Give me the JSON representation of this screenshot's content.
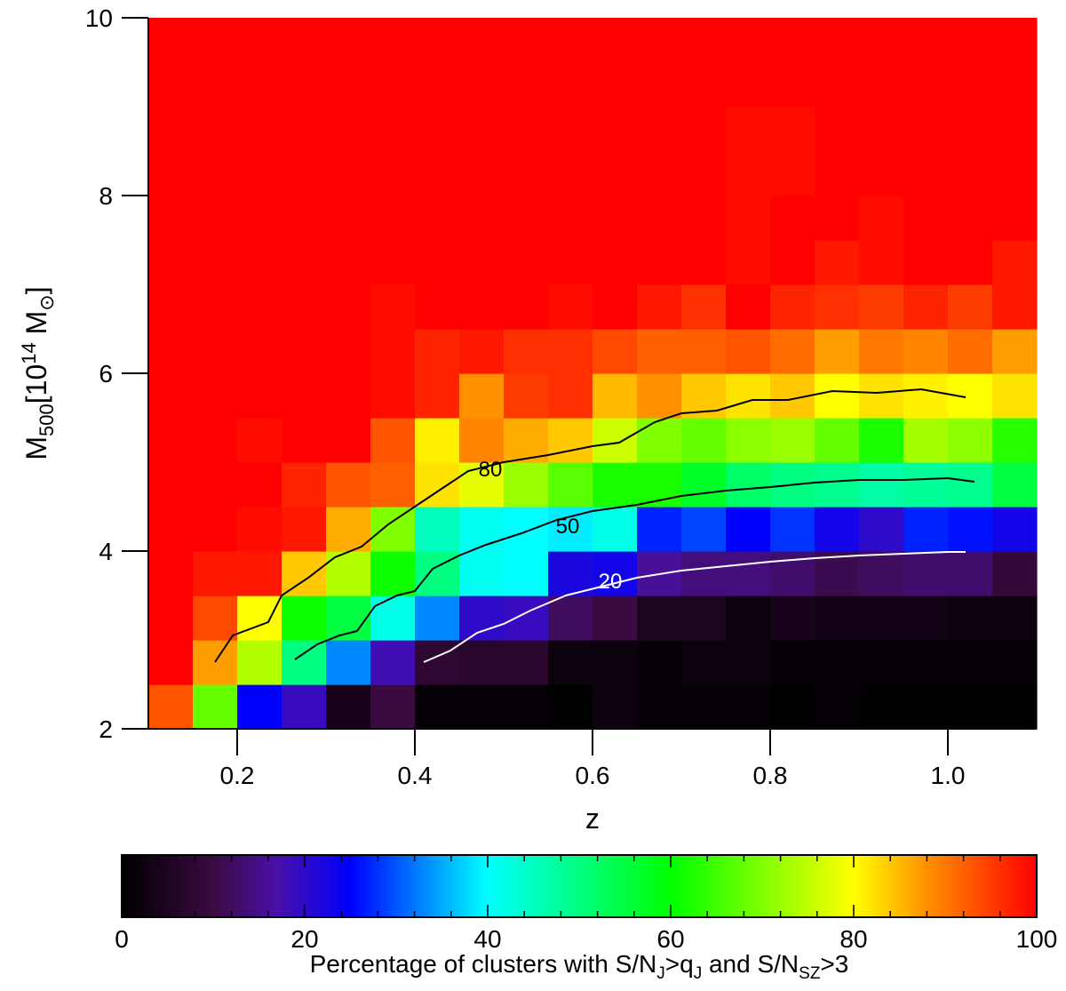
{
  "chart_data": {
    "type": "heatmap",
    "xlabel": "z",
    "ylabel": "M",
    "ylabel_sub": "500",
    "ylabel_units_pre": "[10",
    "ylabel_units_sup": "14",
    "ylabel_units_post": " M",
    "ylabel_units_sub": "⊙",
    "ylabel_units_end": "]",
    "xlim": [
      0.1,
      1.1
    ],
    "ylim": [
      2,
      10
    ],
    "xticks": [
      0.2,
      0.4,
      0.6,
      0.8,
      1.0
    ],
    "xtick_labels": [
      "0.2",
      "0.4",
      "0.6",
      "0.8",
      "1.0"
    ],
    "yticks": [
      2,
      4,
      6,
      8,
      10
    ],
    "ytick_labels": [
      "2",
      "4",
      "6",
      "8",
      "10"
    ],
    "x_bin_edges": [
      0.1,
      0.15,
      0.2,
      0.25,
      0.3,
      0.35,
      0.4,
      0.45,
      0.5,
      0.55,
      0.6,
      0.65,
      0.7,
      0.75,
      0.8,
      0.85,
      0.9,
      0.95,
      1.0,
      1.05,
      1.1
    ],
    "y_bin_edges": [
      2,
      2.5,
      3,
      3.5,
      4,
      4.5,
      5,
      5.5,
      6,
      6.5,
      7,
      7.5,
      8,
      8.5,
      9,
      9.5,
      10
    ],
    "values": [
      [
        93,
        68,
        25,
        19,
        4,
        10,
        1,
        1,
        1,
        0,
        2,
        1,
        1,
        1,
        0,
        1,
        0,
        0,
        0,
        0
      ],
      [
        100,
        87,
        74,
        50,
        33,
        18,
        8,
        7,
        7,
        2,
        2,
        1,
        2,
        2,
        1,
        1,
        1,
        1,
        1,
        1
      ],
      [
        100,
        94,
        80,
        61,
        55,
        42,
        33,
        20,
        19,
        12,
        10,
        5,
        5,
        2,
        4,
        3,
        3,
        3,
        2,
        2
      ],
      [
        100,
        98,
        98,
        84,
        74,
        61,
        50,
        41,
        40,
        22,
        23,
        16,
        14,
        14,
        13,
        11,
        12,
        13,
        13,
        9
      ],
      [
        100,
        100,
        99,
        98,
        86,
        70,
        45,
        41,
        40,
        39,
        42,
        27,
        29,
        25,
        28,
        23,
        20,
        27,
        26,
        23
      ],
      [
        100,
        100,
        100,
        97,
        93,
        92,
        82,
        78,
        72,
        67,
        62,
        62,
        57,
        52,
        50,
        49,
        47,
        48,
        49,
        55
      ],
      [
        100,
        100,
        99,
        100,
        100,
        93,
        81,
        89,
        86,
        84,
        76,
        70,
        68,
        71,
        72,
        68,
        62,
        73,
        71,
        63
      ],
      [
        100,
        100,
        100,
        100,
        100,
        99,
        97,
        88,
        95,
        96,
        85,
        88,
        84,
        82,
        84,
        80,
        82,
        81,
        80,
        82
      ],
      [
        100,
        100,
        100,
        100,
        100,
        99,
        97,
        98,
        96,
        96,
        94,
        92,
        92,
        93,
        91,
        87,
        90,
        89,
        91,
        87
      ],
      [
        100,
        100,
        100,
        100,
        100,
        99,
        100,
        100,
        100,
        99,
        100,
        98,
        96,
        100,
        97,
        96,
        95,
        97,
        95,
        98
      ],
      [
        100,
        100,
        100,
        100,
        100,
        100,
        100,
        100,
        100,
        100,
        100,
        100,
        100,
        99,
        100,
        98,
        99,
        100,
        100,
        98
      ],
      [
        100,
        100,
        100,
        100,
        100,
        100,
        100,
        100,
        100,
        100,
        100,
        100,
        100,
        99,
        100,
        100,
        99,
        100,
        100,
        100
      ],
      [
        100,
        100,
        100,
        100,
        100,
        100,
        100,
        100,
        100,
        100,
        100,
        100,
        100,
        99,
        99,
        100,
        100,
        100,
        100,
        100
      ],
      [
        100,
        100,
        100,
        100,
        100,
        100,
        100,
        100,
        100,
        100,
        100,
        100,
        100,
        99,
        99,
        100,
        100,
        100,
        100,
        100
      ],
      [
        100,
        100,
        100,
        100,
        100,
        100,
        100,
        100,
        100,
        100,
        100,
        100,
        100,
        100,
        100,
        100,
        100,
        100,
        100,
        100
      ],
      [
        100,
        100,
        100,
        100,
        100,
        100,
        100,
        100,
        100,
        100,
        100,
        100,
        100,
        100,
        100,
        100,
        100,
        100,
        100,
        100
      ]
    ],
    "contours": [
      {
        "level": 80,
        "label": "80",
        "color": "#000000",
        "points": [
          [
            0.175,
            2.75
          ],
          [
            0.195,
            3.05
          ],
          [
            0.235,
            3.2
          ],
          [
            0.25,
            3.5
          ],
          [
            0.28,
            3.7
          ],
          [
            0.31,
            3.93
          ],
          [
            0.34,
            4.05
          ],
          [
            0.37,
            4.3
          ],
          [
            0.4,
            4.5
          ],
          [
            0.43,
            4.7
          ],
          [
            0.46,
            4.9
          ],
          [
            0.5,
            5.0
          ],
          [
            0.55,
            5.08
          ],
          [
            0.6,
            5.18
          ],
          [
            0.63,
            5.22
          ],
          [
            0.67,
            5.45
          ],
          [
            0.7,
            5.55
          ],
          [
            0.74,
            5.58
          ],
          [
            0.78,
            5.7
          ],
          [
            0.82,
            5.7
          ],
          [
            0.87,
            5.8
          ],
          [
            0.92,
            5.78
          ],
          [
            0.97,
            5.82
          ],
          [
            1.02,
            5.73
          ]
        ],
        "label_at": [
          0.485,
          4.92
        ]
      },
      {
        "level": 50,
        "label": "50",
        "color": "#000000",
        "points": [
          [
            0.265,
            2.78
          ],
          [
            0.29,
            2.95
          ],
          [
            0.315,
            3.05
          ],
          [
            0.335,
            3.1
          ],
          [
            0.355,
            3.38
          ],
          [
            0.38,
            3.5
          ],
          [
            0.4,
            3.55
          ],
          [
            0.42,
            3.8
          ],
          [
            0.45,
            3.95
          ],
          [
            0.48,
            4.07
          ],
          [
            0.52,
            4.2
          ],
          [
            0.56,
            4.35
          ],
          [
            0.6,
            4.45
          ],
          [
            0.65,
            4.52
          ],
          [
            0.7,
            4.62
          ],
          [
            0.75,
            4.68
          ],
          [
            0.8,
            4.72
          ],
          [
            0.85,
            4.77
          ],
          [
            0.9,
            4.8
          ],
          [
            0.95,
            4.8
          ],
          [
            1.0,
            4.82
          ],
          [
            1.03,
            4.78
          ]
        ],
        "label_at": [
          0.572,
          4.28
        ]
      },
      {
        "level": 20,
        "label": "20",
        "color": "#ffffff",
        "points": [
          [
            0.41,
            2.75
          ],
          [
            0.44,
            2.88
          ],
          [
            0.47,
            3.08
          ],
          [
            0.5,
            3.18
          ],
          [
            0.53,
            3.33
          ],
          [
            0.57,
            3.5
          ],
          [
            0.61,
            3.6
          ],
          [
            0.65,
            3.7
          ],
          [
            0.7,
            3.78
          ],
          [
            0.75,
            3.83
          ],
          [
            0.8,
            3.88
          ],
          [
            0.85,
            3.92
          ],
          [
            0.9,
            3.95
          ],
          [
            0.95,
            3.97
          ],
          [
            1.0,
            3.99
          ],
          [
            1.02,
            3.99
          ]
        ],
        "label_at": [
          0.62,
          3.66
        ]
      }
    ],
    "colorbar": {
      "range": [
        0,
        100
      ],
      "ticks": [
        0,
        20,
        40,
        60,
        80,
        100
      ],
      "tick_labels": [
        "0",
        "20",
        "40",
        "60",
        "80",
        "100"
      ],
      "label_parts": [
        "Percentage of clusters with S/N",
        "J",
        ">q",
        "J",
        " and S/N",
        "SZ",
        ">3"
      ],
      "colormap": [
        [
          0,
          "#000000"
        ],
        [
          10,
          "#3a0a40"
        ],
        [
          17,
          "#4a10a8"
        ],
        [
          25,
          "#0000ff"
        ],
        [
          40,
          "#00ffff"
        ],
        [
          60,
          "#00ff00"
        ],
        [
          80,
          "#ffff00"
        ],
        [
          88,
          "#ff9000"
        ],
        [
          100,
          "#ff0000"
        ]
      ]
    }
  }
}
